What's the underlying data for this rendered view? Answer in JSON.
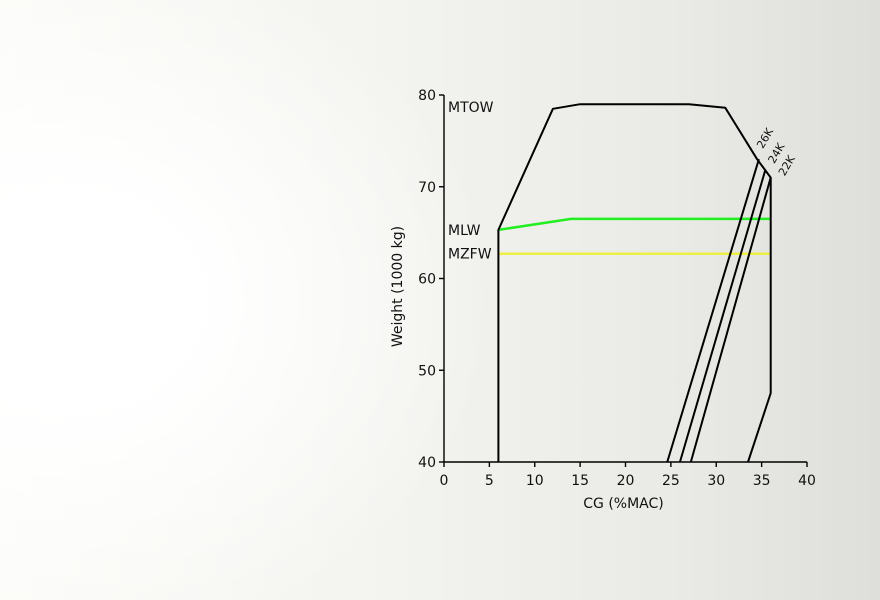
{
  "chart_data": {
    "type": "line",
    "title": "",
    "xlabel": "CG (%MAC)",
    "ylabel": "Weight (1000 kg)",
    "xlim": [
      0,
      40
    ],
    "ylim": [
      40,
      80
    ],
    "xticks": [
      0,
      5,
      10,
      15,
      20,
      25,
      30,
      35,
      40
    ],
    "yticks": [
      40,
      50,
      60,
      70,
      80
    ],
    "grid": false,
    "legend": "none",
    "envelope": [
      {
        "x": 6,
        "y": 40
      },
      {
        "x": 6,
        "y": 65.3
      },
      {
        "x": 12,
        "y": 78.5
      },
      {
        "x": 15,
        "y": 79
      },
      {
        "x": 27,
        "y": 79
      },
      {
        "x": 31,
        "y": 78.6
      },
      {
        "x": 34.5,
        "y": 73
      },
      {
        "x": 36,
        "y": 71
      },
      {
        "x": 36,
        "y": 47.5
      },
      {
        "x": 33.5,
        "y": 40
      }
    ],
    "limits": [
      {
        "label": "MLW",
        "color": "#22ee22",
        "points": [
          {
            "x": 6,
            "y": 65.3
          },
          {
            "x": 14,
            "y": 66.5
          },
          {
            "x": 36,
            "y": 66.5
          }
        ]
      },
      {
        "label": "MZFW",
        "color": "#eeee44",
        "points": [
          {
            "x": 6,
            "y": 62.7
          },
          {
            "x": 36,
            "y": 62.7
          }
        ]
      }
    ],
    "mtow_label": "MTOW",
    "thrust_lines": [
      {
        "label": "26K",
        "points": [
          {
            "x": 24.6,
            "y": 40
          },
          {
            "x": 34.7,
            "y": 73
          }
        ]
      },
      {
        "label": "24K",
        "points": [
          {
            "x": 26,
            "y": 40
          },
          {
            "x": 35.4,
            "y": 71.8
          }
        ]
      },
      {
        "label": "22K",
        "points": [
          {
            "x": 27.2,
            "y": 40
          },
          {
            "x": 36,
            "y": 71
          }
        ]
      }
    ]
  }
}
